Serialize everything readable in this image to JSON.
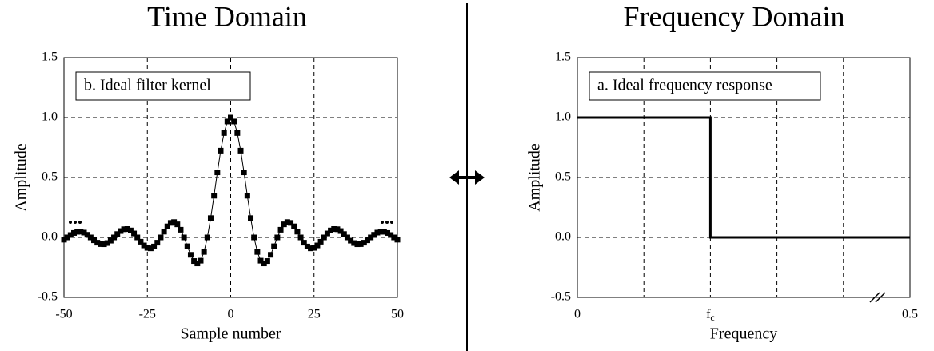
{
  "chart_data": [
    {
      "type": "scatter-line",
      "title": "Time Domain",
      "annotation": "b. Ideal filter kernel",
      "x_label": "Sample number",
      "y_label": "Amplitude",
      "x": [
        -50,
        -49,
        -48,
        -47,
        -46,
        -45,
        -44,
        -43,
        -42,
        -41,
        -40,
        -39,
        -38,
        -37,
        -36,
        -35,
        -34,
        -33,
        -32,
        -31,
        -30,
        -29,
        -28,
        -27,
        -26,
        -25,
        -24,
        -23,
        -22,
        -21,
        -20,
        -19,
        -18,
        -17,
        -16,
        -15,
        -14,
        -13,
        -12,
        -11,
        -10,
        -9,
        -8,
        -7,
        -6,
        -5,
        -4,
        -3,
        -2,
        -1,
        0,
        1,
        2,
        3,
        4,
        5,
        6,
        7,
        8,
        9,
        10,
        11,
        12,
        13,
        14,
        15,
        16,
        17,
        18,
        19,
        20,
        21,
        22,
        23,
        24,
        25,
        26,
        27,
        28,
        29,
        30,
        31,
        32,
        33,
        34,
        35,
        36,
        37,
        38,
        39,
        40,
        41,
        42,
        43,
        44,
        45,
        46,
        47,
        48,
        49,
        50
      ],
      "values": [
        -0.019,
        0,
        0.02,
        0.037,
        0.047,
        0.048,
        0.04,
        0.022,
        0,
        -0.024,
        -0.044,
        -0.056,
        -0.057,
        -0.047,
        -0.027,
        0,
        0.028,
        0.053,
        0.068,
        0.07,
        0.058,
        0.033,
        0,
        -0.036,
        -0.067,
        -0.087,
        -0.091,
        -0.076,
        -0.044,
        0,
        0.048,
        0.092,
        0.121,
        0.128,
        0.109,
        0.064,
        0,
        -0.074,
        -0.145,
        -0.197,
        -0.217,
        -0.194,
        -0.121,
        0,
        0.161,
        0.348,
        0.543,
        0.724,
        0.871,
        0.967,
        1,
        0.967,
        0.871,
        0.724,
        0.543,
        0.348,
        0.161,
        0,
        -0.121,
        -0.194,
        -0.217,
        -0.197,
        -0.145,
        -0.074,
        0,
        0.064,
        0.109,
        0.128,
        0.121,
        0.092,
        0.048,
        0,
        -0.044,
        -0.076,
        -0.091,
        -0.087,
        -0.067,
        -0.036,
        0,
        0.033,
        0.058,
        0.07,
        0.068,
        0.053,
        0.028,
        0,
        -0.027,
        -0.047,
        -0.057,
        -0.056,
        -0.044,
        -0.024,
        0,
        0.022,
        0.04,
        0.048,
        0.047,
        0.037,
        0.02,
        0,
        -0.019
      ],
      "color": "#000000",
      "xlim": [
        -50,
        50
      ],
      "xticks": [
        -50,
        -25,
        0,
        25,
        50
      ],
      "ylim": [
        -0.5,
        1.5
      ],
      "yticks": [
        -0.5,
        {
          "value": 0,
          "label": "0.0"
        },
        0.5,
        {
          "value": 1,
          "label": "1.0"
        },
        1.5
      ],
      "grid": true
    },
    {
      "type": "line",
      "title": "Frequency Domain",
      "annotation": "a. Ideal frequency response",
      "x_label": "Frequency",
      "y_label": "Amplitude",
      "x": [
        0,
        0.2,
        0.2,
        0.5
      ],
      "values": [
        1,
        1,
        0,
        0
      ],
      "color": "#000000",
      "xlim": [
        0,
        0.5
      ],
      "xticks": [
        0,
        {
          "value": 0.2,
          "label": "fc"
        },
        0.5
      ],
      "xgrid": [
        0.1,
        0.2,
        0.3,
        0.4
      ],
      "ylim": [
        -0.5,
        1.5
      ],
      "yticks": [
        -0.5,
        {
          "value": 0,
          "label": "0.0"
        },
        0.5,
        {
          "value": 1,
          "label": "1.0"
        },
        1.5
      ],
      "grid": true
    }
  ]
}
